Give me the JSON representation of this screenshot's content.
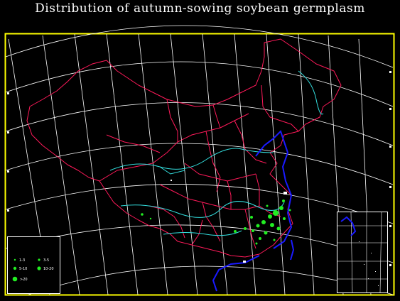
{
  "map": {
    "title": "Distribution of autumn-sowing soybean germplasm",
    "colors": {
      "background": "#000000",
      "frame": "#ffff00",
      "graticule": "#ffffff",
      "province_borders": "#ff1a5a",
      "rivers": "#33dddd",
      "coastline": "#1a1aff",
      "points": "#22ee22"
    },
    "legend": {
      "items": [
        {
          "label": "1-3",
          "size_class": 1
        },
        {
          "label": "3-5",
          "size_class": 2
        },
        {
          "label": "5-10",
          "size_class": 3
        },
        {
          "label": "10-20",
          "size_class": 4
        },
        {
          "label": ">20",
          "size_class": 5
        }
      ]
    },
    "inset": {
      "name": "south-china-sea-islands"
    }
  }
}
